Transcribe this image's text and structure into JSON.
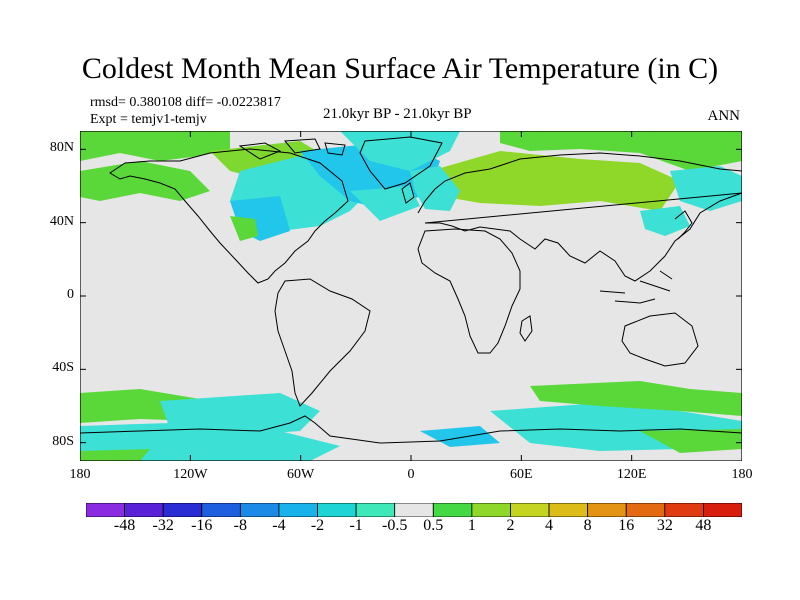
{
  "title": "Coldest Month Mean Surface Air Temperature (in C)",
  "stats": {
    "rmsd": "rmsd= 0.380108 diff= -0.0223817",
    "expt": "Expt = temjv1-temjv"
  },
  "period": "21.0kyr BP - 21.0kyr BP",
  "season": "ANN",
  "axes": {
    "lat_labels": [
      "80N",
      "40N",
      "0",
      "40S",
      "80S"
    ],
    "lat_values": [
      80,
      40,
      0,
      -40,
      -80
    ],
    "lon_labels": [
      "180",
      "120W",
      "60W",
      "0",
      "60E",
      "120E",
      "180"
    ],
    "lon_values": [
      -180,
      -120,
      -60,
      0,
      60,
      120,
      180
    ],
    "lat_range": [
      -90,
      90
    ],
    "lon_range": [
      -180,
      180
    ]
  },
  "colorbar": {
    "labels": [
      "-48",
      "-32",
      "-16",
      "-8",
      "-4",
      "-2",
      "-1",
      "-0.5",
      "0.5",
      "1",
      "2",
      "4",
      "8",
      "16",
      "32",
      "48"
    ],
    "colors": [
      "#8a2be2",
      "#5a22d8",
      "#2a2cd4",
      "#1e5fe0",
      "#1b8ae6",
      "#19b2ea",
      "#1fd4d4",
      "#3fe8b8",
      "#e6e6e6",
      "#44d844",
      "#8fd82a",
      "#c4d420",
      "#dcbc18",
      "#e49414",
      "#e46a12",
      "#e03a10",
      "#d81e0c"
    ]
  },
  "colors": {
    "ocean_land": "#e6e6e6",
    "coastline": "#000000",
    "cool_cyan": "#3ce0d4",
    "cool_blue": "#22c6ea",
    "warm_green": "#5ad83a",
    "warm_lime": "#8fd82a"
  }
}
